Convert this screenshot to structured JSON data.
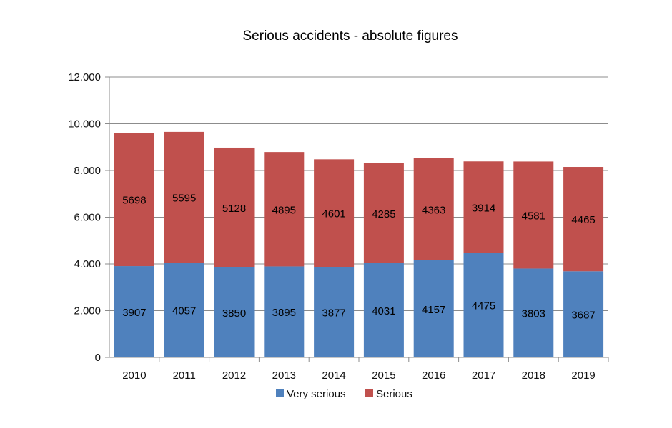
{
  "chart_data": {
    "type": "bar",
    "stacked": true,
    "title": "Serious accidents - absolute figures",
    "categories": [
      "2010",
      "2011",
      "2012",
      "2013",
      "2014",
      "2015",
      "2016",
      "2017",
      "2018",
      "2019"
    ],
    "series": [
      {
        "name": "Very serious",
        "color": "#4f81bd",
        "values": [
          3907,
          4057,
          3850,
          3895,
          3877,
          4031,
          4157,
          4475,
          3803,
          3687
        ]
      },
      {
        "name": "Serious",
        "color": "#c0504d",
        "values": [
          5698,
          5595,
          5128,
          4895,
          4601,
          4285,
          4363,
          3914,
          4581,
          4465
        ]
      }
    ],
    "ylim": [
      0,
      12000
    ],
    "y_ticks": [
      0,
      2000,
      4000,
      6000,
      8000,
      10000,
      12000
    ],
    "y_tick_labels": [
      "0",
      "2.000",
      "4.000",
      "6.000",
      "8.000",
      "10.000",
      "12.000"
    ],
    "grid": true,
    "legend_position": "bottom"
  }
}
